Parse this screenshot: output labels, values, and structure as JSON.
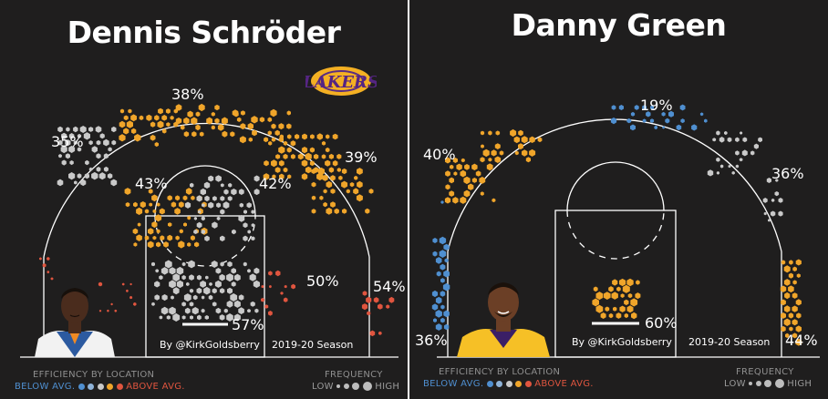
{
  "panels": [
    {
      "player": "Dennis Schröder",
      "credit": "By @KirkGoldsberry",
      "season": "2019-20 Season",
      "zones": [
        "35%",
        "38%",
        "39%",
        "43%",
        "42%",
        "50%",
        "54%",
        "57%"
      ],
      "logo_text": "LAKERS"
    },
    {
      "player": "Danny Green",
      "credit": "By @KirkGoldsberry",
      "season": "2019-20 Season",
      "zones": [
        "40%",
        "19%",
        "36%",
        "36%",
        "44%",
        "60%"
      ]
    }
  ],
  "legend": {
    "efficiency_title": "EFFICIENCY BY LOCATION",
    "below": "BELOW AVG.",
    "above": "ABOVE AVG.",
    "frequency_title": "FREQUENCY",
    "low": "LOW",
    "high": "HIGH",
    "colors": {
      "below": "#4f8fd0",
      "average": "#c9c9c9",
      "above": "#e0553f",
      "gold": "#f0a52a"
    }
  },
  "chart_data": [
    {
      "type": "shot-chart",
      "title": "Dennis Schröder",
      "zones": [
        {
          "label": "35%",
          "value": 35,
          "region": "left wing three"
        },
        {
          "label": "38%",
          "value": 38,
          "region": "top of key three"
        },
        {
          "label": "39%",
          "value": 39,
          "region": "right wing three"
        },
        {
          "label": "43%",
          "value": 43,
          "region": "left mid-range"
        },
        {
          "label": "42%",
          "value": 42,
          "region": "right mid-range"
        },
        {
          "label": "50%",
          "value": 50,
          "region": "right baseline mid-range"
        },
        {
          "label": "54%",
          "value": 54,
          "region": "right corner three"
        },
        {
          "label": "57%",
          "value": 57,
          "region": "restricted area"
        }
      ]
    },
    {
      "type": "shot-chart",
      "title": "Danny Green",
      "zones": [
        {
          "label": "40%",
          "value": 40,
          "region": "left wing three"
        },
        {
          "label": "19%",
          "value": 19,
          "region": "top of key three"
        },
        {
          "label": "36%",
          "value": 36,
          "region": "right wing three"
        },
        {
          "label": "36%",
          "value": 36,
          "region": "left corner three"
        },
        {
          "label": "44%",
          "value": 44,
          "region": "right corner three"
        },
        {
          "label": "60%",
          "value": 60,
          "region": "restricted area"
        }
      ]
    }
  ]
}
